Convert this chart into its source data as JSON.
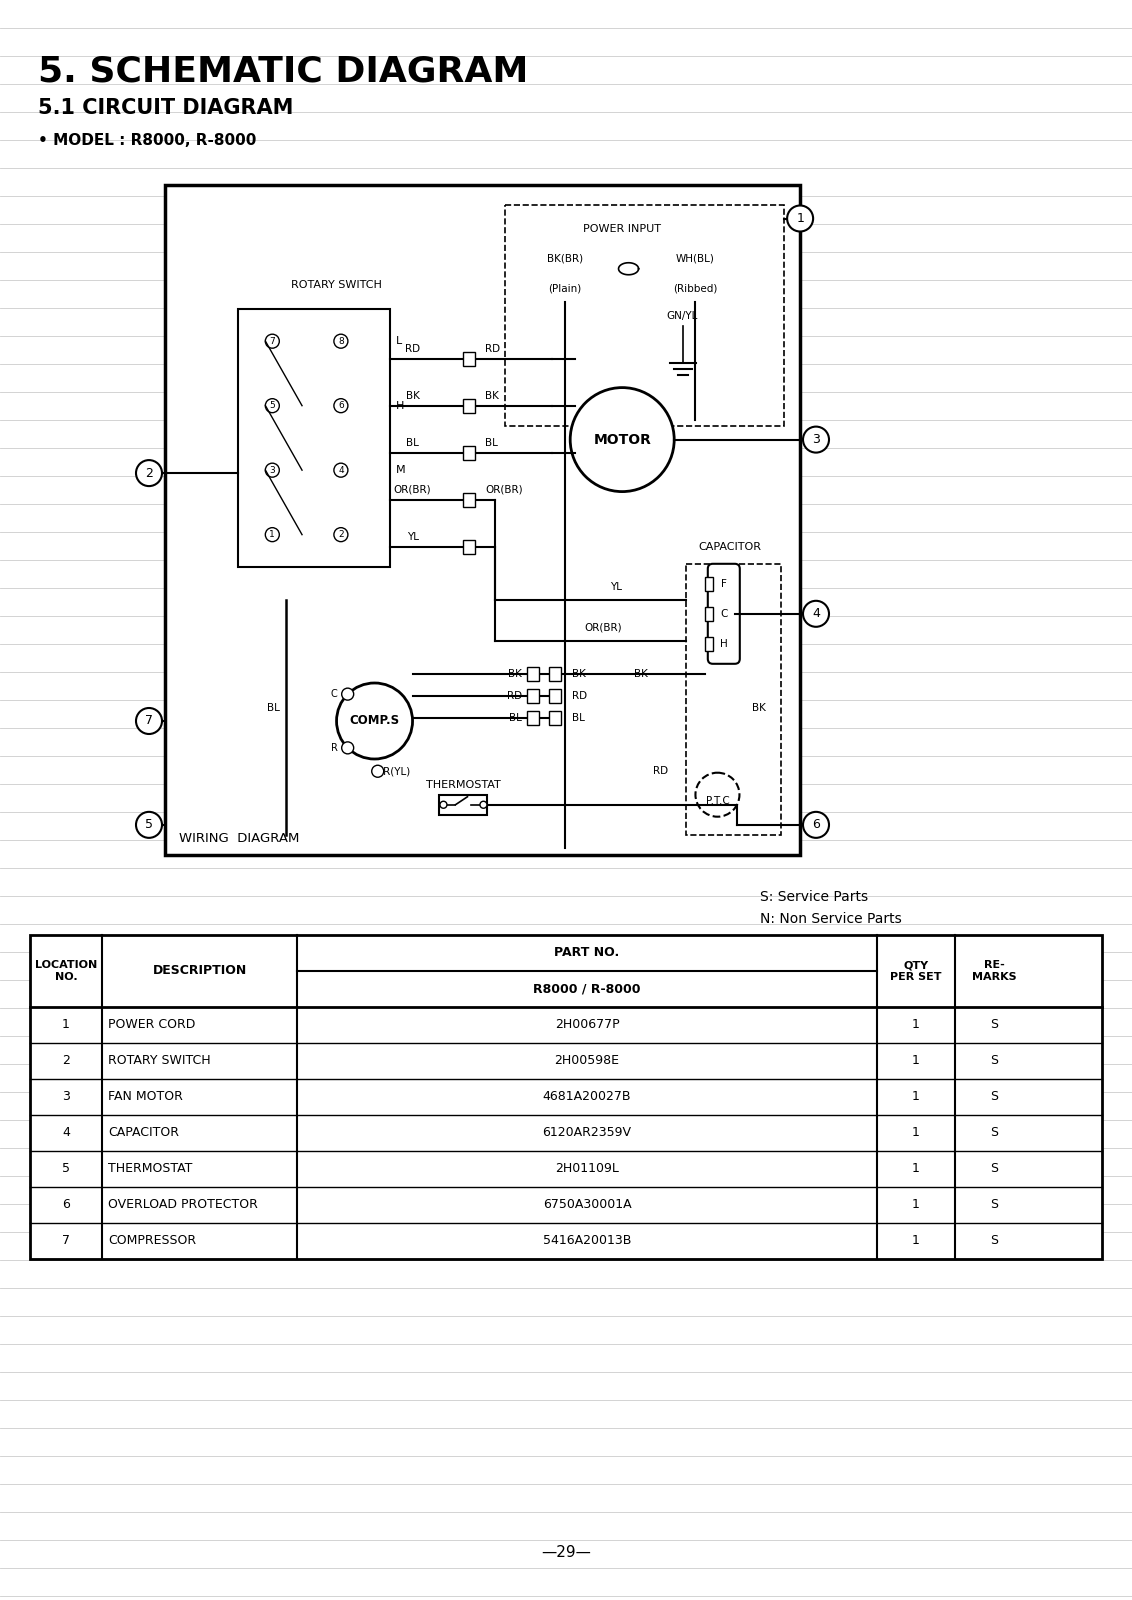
{
  "title1": "5. SCHEMATIC DIAGRAM",
  "title2": "5.1 CIRCUIT DIAGRAM",
  "model": "• MODEL : R8000, R-8000",
  "wiring_label": "WIRING  DIAGRAM",
  "service_note1": "S: Service Parts",
  "service_note2": "N: Non Service Parts",
  "part_no_subheader": "R8000 / R-8000",
  "rows": [
    [
      "1",
      "POWER CORD",
      "2H00677P",
      "1",
      "S"
    ],
    [
      "2",
      "ROTARY SWITCH",
      "2H00598E",
      "1",
      "S"
    ],
    [
      "3",
      "FAN MOTOR",
      "4681A20027B",
      "1",
      "S"
    ],
    [
      "4",
      "CAPACITOR",
      "6120AR2359V",
      "1",
      "S"
    ],
    [
      "5",
      "THERMOSTAT",
      "2H01109L",
      "1",
      "S"
    ],
    [
      "6",
      "OVERLOAD PROTECTOR",
      "6750A30001A",
      "1",
      "S"
    ],
    [
      "7",
      "COMPRESSOR",
      "5416A20013B",
      "1",
      "S"
    ]
  ],
  "page_number": "—29—",
  "bg_color": "#ffffff",
  "ruled_line_color": "#cccccc"
}
